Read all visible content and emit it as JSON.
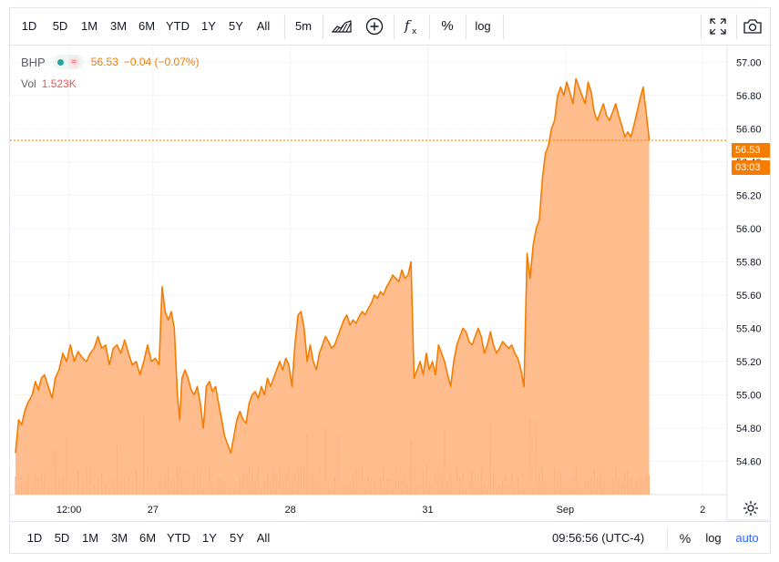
{
  "toolbar": {
    "ranges": [
      "1D",
      "5D",
      "1M",
      "3M",
      "6M",
      "YTD",
      "1Y",
      "5Y",
      "All"
    ],
    "interval": "5m",
    "log_label": "log",
    "percent_label": "%",
    "icons": [
      "chart-style-icon",
      "compare-plus-icon",
      "indicators-fx-icon",
      "fullscreen-icon",
      "camera-icon"
    ]
  },
  "legend": {
    "symbol": "BHP",
    "price": "56.53",
    "change": "−0.04 (−0.07%)",
    "volume_label": "Vol",
    "volume": "1.523K"
  },
  "price_tags": {
    "last": "56.53",
    "countdown": "03:03"
  },
  "bottom": {
    "ranges": [
      "1D",
      "5D",
      "1M",
      "3M",
      "6M",
      "YTD",
      "1Y",
      "5Y",
      "All"
    ],
    "clock": "09:56:56 (UTC-4)",
    "percent_label": "%",
    "log_label": "log",
    "auto_label": "auto"
  },
  "colors": {
    "line": "#f57c00",
    "fill": "#ffb27a",
    "volume": "#e8a57a",
    "grid": "#f0f3fa"
  },
  "chart_data": {
    "type": "area",
    "symbol": "BHP",
    "y_ticks": [
      "57.00",
      "56.80",
      "56.60",
      "56.40",
      "56.20",
      "56.00",
      "55.80",
      "55.60",
      "55.40",
      "55.20",
      "55.00",
      "54.80",
      "54.60"
    ],
    "ylim": [
      54.4,
      57.1
    ],
    "x_ticks": [
      {
        "label": "12:00",
        "t": 7
      },
      {
        "label": "27",
        "t": 18
      },
      {
        "label": "28",
        "t": 36
      },
      {
        "label": "31",
        "t": 54
      },
      {
        "label": "Sep",
        "t": 72
      },
      {
        "label": "2",
        "t": 90
      }
    ],
    "t_range": [
      0,
      92
    ],
    "last_price": 56.53,
    "series": [
      {
        "values": [
          [
            0,
            54.65
          ],
          [
            0.4,
            54.85
          ],
          [
            0.8,
            54.82
          ],
          [
            1.2,
            54.9
          ],
          [
            1.6,
            54.95
          ],
          [
            2.2,
            55.0
          ],
          [
            2.6,
            55.08
          ],
          [
            3.0,
            55.03
          ],
          [
            3.4,
            55.1
          ],
          [
            3.8,
            55.12
          ],
          [
            4.3,
            55.05
          ],
          [
            4.8,
            54.98
          ],
          [
            5.2,
            55.1
          ],
          [
            5.7,
            55.15
          ],
          [
            6.2,
            55.25
          ],
          [
            6.7,
            55.2
          ],
          [
            7.2,
            55.3
          ],
          [
            7.7,
            55.2
          ],
          [
            8.2,
            55.26
          ],
          [
            8.8,
            55.22
          ],
          [
            9.3,
            55.2
          ],
          [
            9.8,
            55.25
          ],
          [
            10.3,
            55.28
          ],
          [
            10.8,
            55.35
          ],
          [
            11.3,
            55.28
          ],
          [
            11.8,
            55.3
          ],
          [
            12.3,
            55.18
          ],
          [
            12.8,
            55.28
          ],
          [
            13.3,
            55.3
          ],
          [
            13.8,
            55.25
          ],
          [
            14.3,
            55.33
          ],
          [
            14.8,
            55.25
          ],
          [
            15.3,
            55.18
          ],
          [
            15.8,
            55.2
          ],
          [
            16.3,
            55.12
          ],
          [
            16.8,
            55.2
          ],
          [
            17.3,
            55.3
          ],
          [
            17.8,
            55.2
          ],
          [
            18.3,
            55.22
          ],
          [
            18.8,
            55.18
          ],
          [
            19.2,
            55.65
          ],
          [
            19.6,
            55.5
          ],
          [
            20.0,
            55.45
          ],
          [
            20.4,
            55.5
          ],
          [
            20.8,
            55.4
          ],
          [
            21.2,
            55.0
          ],
          [
            21.5,
            54.85
          ],
          [
            21.8,
            55.1
          ],
          [
            22.2,
            55.15
          ],
          [
            22.6,
            55.1
          ],
          [
            23.0,
            55.03
          ],
          [
            23.4,
            55.0
          ],
          [
            23.8,
            55.05
          ],
          [
            24.2,
            54.95
          ],
          [
            24.6,
            54.8
          ],
          [
            25.0,
            55.05
          ],
          [
            25.4,
            55.08
          ],
          [
            25.8,
            55.02
          ],
          [
            26.2,
            55.05
          ],
          [
            26.6,
            54.95
          ],
          [
            27.0,
            54.85
          ],
          [
            27.4,
            54.75
          ],
          [
            27.8,
            54.7
          ],
          [
            28.2,
            54.65
          ],
          [
            28.6,
            54.75
          ],
          [
            29.0,
            54.85
          ],
          [
            29.4,
            54.9
          ],
          [
            29.8,
            54.85
          ],
          [
            30.2,
            54.83
          ],
          [
            30.6,
            54.95
          ],
          [
            31.0,
            55.0
          ],
          [
            31.4,
            55.02
          ],
          [
            31.8,
            54.98
          ],
          [
            32.2,
            55.05
          ],
          [
            32.6,
            55.0
          ],
          [
            33.0,
            55.1
          ],
          [
            33.4,
            55.05
          ],
          [
            33.8,
            55.1
          ],
          [
            34.2,
            55.15
          ],
          [
            34.6,
            55.2
          ],
          [
            35.0,
            55.15
          ],
          [
            35.4,
            55.22
          ],
          [
            35.8,
            55.18
          ],
          [
            36.2,
            55.05
          ],
          [
            36.6,
            55.3
          ],
          [
            37.0,
            55.48
          ],
          [
            37.4,
            55.5
          ],
          [
            37.8,
            55.4
          ],
          [
            38.2,
            55.2
          ],
          [
            38.6,
            55.3
          ],
          [
            39.0,
            55.2
          ],
          [
            39.4,
            55.15
          ],
          [
            39.8,
            55.25
          ],
          [
            40.2,
            55.3
          ],
          [
            40.6,
            55.35
          ],
          [
            41.0,
            55.32
          ],
          [
            41.4,
            55.28
          ],
          [
            41.8,
            55.3
          ],
          [
            42.2,
            55.35
          ],
          [
            42.6,
            55.4
          ],
          [
            43.0,
            55.45
          ],
          [
            43.4,
            55.48
          ],
          [
            43.8,
            55.42
          ],
          [
            44.2,
            55.45
          ],
          [
            44.6,
            55.43
          ],
          [
            45.0,
            55.47
          ],
          [
            45.4,
            55.5
          ],
          [
            45.8,
            55.48
          ],
          [
            46.2,
            55.52
          ],
          [
            46.6,
            55.55
          ],
          [
            47.0,
            55.6
          ],
          [
            47.4,
            55.58
          ],
          [
            47.8,
            55.62
          ],
          [
            48.2,
            55.6
          ],
          [
            48.6,
            55.65
          ],
          [
            49.0,
            55.68
          ],
          [
            49.4,
            55.72
          ],
          [
            49.8,
            55.7
          ],
          [
            50.2,
            55.68
          ],
          [
            50.6,
            55.75
          ],
          [
            51.0,
            55.7
          ],
          [
            51.4,
            55.72
          ],
          [
            51.8,
            55.8
          ],
          [
            52.2,
            55.1
          ],
          [
            52.6,
            55.15
          ],
          [
            53.0,
            55.2
          ],
          [
            53.4,
            55.12
          ],
          [
            53.8,
            55.25
          ],
          [
            54.2,
            55.15
          ],
          [
            54.6,
            55.2
          ],
          [
            55.0,
            55.12
          ],
          [
            55.4,
            55.3
          ],
          [
            55.8,
            55.25
          ],
          [
            56.2,
            55.2
          ],
          [
            56.6,
            55.12
          ],
          [
            57.0,
            55.05
          ],
          [
            57.4,
            55.2
          ],
          [
            57.8,
            55.3
          ],
          [
            58.2,
            55.35
          ],
          [
            58.6,
            55.4
          ],
          [
            59.0,
            55.38
          ],
          [
            59.4,
            55.32
          ],
          [
            59.8,
            55.3
          ],
          [
            60.2,
            55.35
          ],
          [
            60.6,
            55.4
          ],
          [
            61.0,
            55.35
          ],
          [
            61.4,
            55.25
          ],
          [
            61.8,
            55.3
          ],
          [
            62.2,
            55.38
          ],
          [
            62.6,
            55.3
          ],
          [
            63.0,
            55.25
          ],
          [
            63.4,
            55.28
          ],
          [
            63.8,
            55.32
          ],
          [
            64.2,
            55.3
          ],
          [
            64.6,
            55.28
          ],
          [
            65.0,
            55.3
          ],
          [
            65.4,
            55.25
          ],
          [
            65.8,
            55.22
          ],
          [
            66.2,
            55.15
          ],
          [
            66.6,
            55.05
          ],
          [
            67.0,
            55.85
          ],
          [
            67.4,
            55.7
          ],
          [
            67.8,
            55.9
          ],
          [
            68.2,
            56.0
          ],
          [
            68.6,
            56.05
          ],
          [
            69.0,
            56.3
          ],
          [
            69.4,
            56.45
          ],
          [
            69.8,
            56.5
          ],
          [
            70.2,
            56.6
          ],
          [
            70.6,
            56.65
          ],
          [
            71.0,
            56.8
          ],
          [
            71.4,
            56.85
          ],
          [
            71.8,
            56.8
          ],
          [
            72.2,
            56.88
          ],
          [
            72.6,
            56.82
          ],
          [
            73.0,
            56.75
          ],
          [
            73.4,
            56.9
          ],
          [
            73.8,
            56.85
          ],
          [
            74.2,
            56.8
          ],
          [
            74.6,
            56.75
          ],
          [
            75.0,
            56.88
          ],
          [
            75.4,
            56.82
          ],
          [
            75.8,
            56.7
          ],
          [
            76.2,
            56.65
          ],
          [
            76.6,
            56.7
          ],
          [
            77.0,
            56.75
          ],
          [
            77.4,
            56.68
          ],
          [
            77.8,
            56.65
          ],
          [
            78.2,
            56.7
          ],
          [
            78.6,
            56.75
          ],
          [
            79.0,
            56.68
          ],
          [
            79.4,
            56.62
          ],
          [
            79.8,
            56.55
          ],
          [
            80.2,
            56.58
          ],
          [
            80.6,
            56.55
          ],
          [
            81.0,
            56.62
          ],
          [
            81.4,
            56.7
          ],
          [
            81.8,
            56.78
          ],
          [
            82.2,
            56.85
          ],
          [
            82.6,
            56.7
          ],
          [
            83.0,
            56.53
          ]
        ]
      }
    ]
  }
}
